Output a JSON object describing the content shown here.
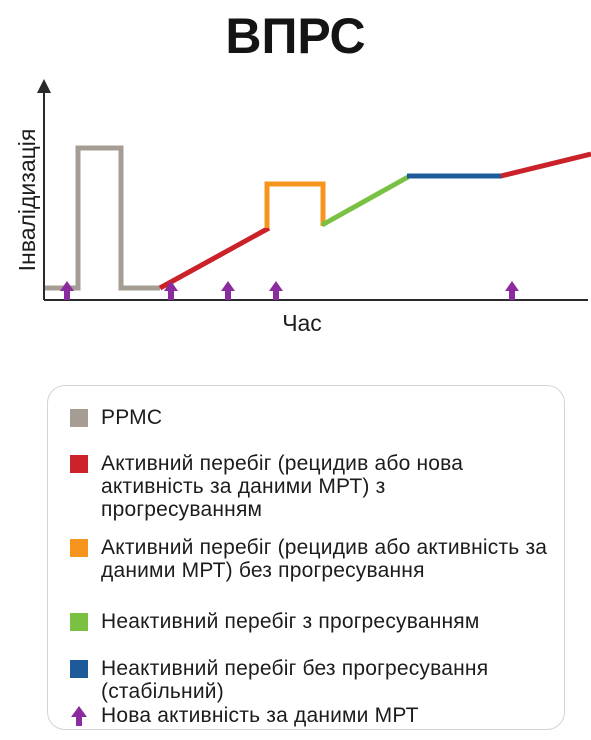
{
  "title": "ВПРС",
  "chart": {
    "ylabel": "Інвалідизація",
    "xlabel": "Час"
  },
  "colors": {
    "ppms": "#a59c94",
    "active_progressing": "#cb2229",
    "active_not_progressing": "#f7941d",
    "inactive_progressing": "#7ac143",
    "inactive_stable": "#1d5a99",
    "mri_activity": "#8b2c9e"
  },
  "legend": {
    "items": [
      {
        "key": "ppms",
        "label": "РРМС",
        "icon": "square-swatch"
      },
      {
        "key": "active_progressing",
        "label": "Активний перебіг (рецидив або нова активність за даними МРТ) з прогресуванням",
        "icon": "square-swatch"
      },
      {
        "key": "active_not_progressing",
        "label": "Активний перебіг (рецидив або активність за даними МРТ) без прогресування",
        "icon": "square-swatch"
      },
      {
        "key": "inactive_progressing",
        "label": "Неактивний перебіг з прогресуванням",
        "icon": "square-swatch"
      },
      {
        "key": "inactive_stable",
        "label": "Неактивний перебіг без прогресування (стабільний)",
        "icon": "square-swatch"
      },
      {
        "key": "mri_activity",
        "label": "Нова активність за даними МРТ",
        "icon": "up-arrow-icon"
      }
    ]
  }
}
